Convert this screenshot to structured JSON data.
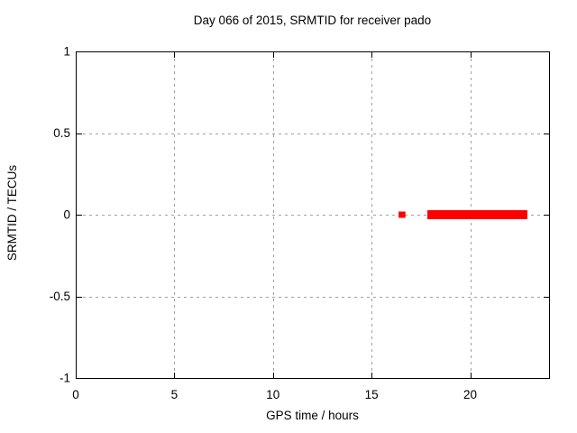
{
  "colors": {
    "background": "#ffffff",
    "border": "#000000",
    "grid": "#a0a0a0",
    "text": "#000000",
    "data": "#ff0000"
  },
  "chart_data": {
    "type": "scatter",
    "title": "Day 066 of 2015, SRMTID for receiver pado",
    "xlabel": "GPS time / hours",
    "ylabel": "SRMTID / TECUs",
    "xlim": [
      0,
      24
    ],
    "ylim": [
      -1,
      1
    ],
    "grid": true,
    "legend": "none",
    "x_ticks": [
      {
        "value": 0,
        "label": "0"
      },
      {
        "value": 5,
        "label": "5"
      },
      {
        "value": 10,
        "label": "10"
      },
      {
        "value": 15,
        "label": "15"
      },
      {
        "value": 20,
        "label": "20"
      }
    ],
    "y_ticks": [
      {
        "value": -1,
        "label": "-1"
      },
      {
        "value": -0.5,
        "label": "-0.5"
      },
      {
        "value": 0,
        "label": "0"
      },
      {
        "value": 0.5,
        "label": "0.5"
      },
      {
        "value": 1,
        "label": "1"
      }
    ],
    "series": [
      {
        "name": "SRMTID",
        "color": "#ff0000",
        "marker": "square",
        "segments": [
          {
            "x_start": 16.37,
            "x_end": 16.72,
            "y": 0,
            "y_spread": 0.019
          },
          {
            "x_start": 17.83,
            "x_end": 22.9,
            "y": 0,
            "y_spread": 0.029
          }
        ]
      }
    ]
  }
}
